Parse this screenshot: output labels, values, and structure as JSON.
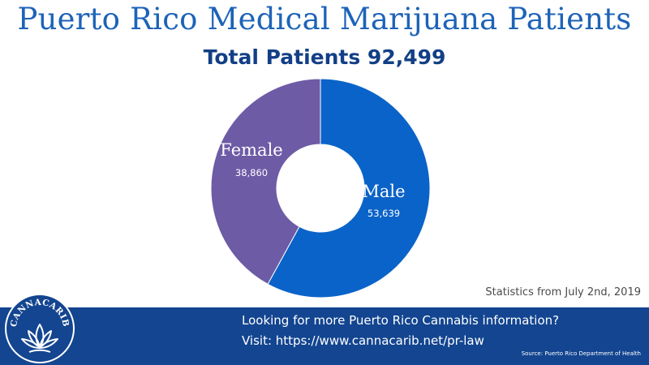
{
  "header": {
    "title": "Puerto Rico Medical Marijuana Patients",
    "subtitle": "Total Patients 92,499"
  },
  "chart_data": {
    "type": "pie",
    "donut": true,
    "title": "Puerto Rico Medical Marijuana Patients",
    "subtitle": "Total Patients 92,499",
    "slices": [
      {
        "label": "Male",
        "value": 53639,
        "value_label": "53,639",
        "color": "#0a63c8"
      },
      {
        "label": "Female",
        "value": 38860,
        "value_label": "38,860",
        "color": "#6d5ba6"
      }
    ]
  },
  "note": "Statistics from July 2nd, 2019",
  "banner": {
    "line1": "Looking for more Puerto Rico Cannabis information?",
    "line2": "Visit: https://www.cannacarib.net/pr-law",
    "source": "Source: Puerto Rico Department of Health",
    "logo_text": "CANNACARIB"
  },
  "colors": {
    "title": "#1d63b8",
    "subtitle": "#123f86",
    "banner": "#134590"
  }
}
